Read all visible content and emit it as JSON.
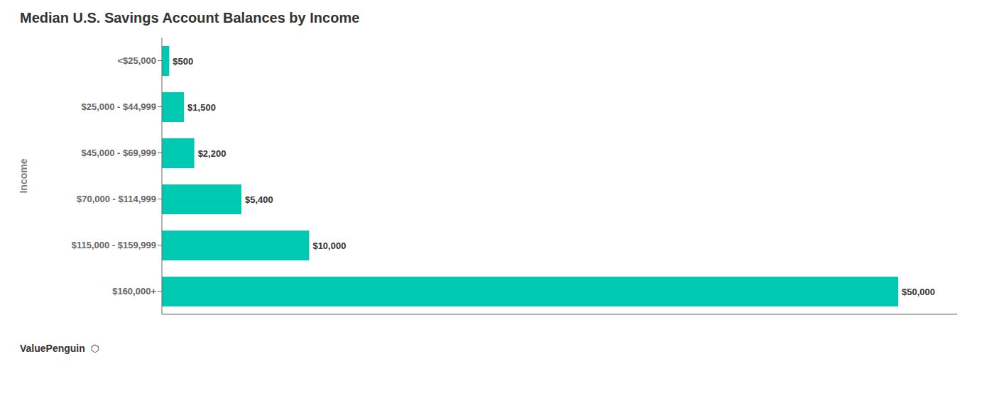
{
  "chart_data": {
    "type": "bar",
    "orientation": "horizontal",
    "title": "Median U.S. Savings Account Balances by Income",
    "y_label": "Income",
    "categories": [
      "<$25,000",
      "$25,000 - $44,999",
      "$45,000 - $69,999",
      "$70,000 - $114,999",
      "$115,000 - $159,999",
      "$160,000+"
    ],
    "values": [
      500,
      1500,
      2200,
      5400,
      10000,
      50000
    ],
    "value_labels": [
      "$500",
      "$1,500",
      "$2,200",
      "$5,400",
      "$10,000",
      "$50,000"
    ],
    "data_labels": true,
    "color": "#00C9B1",
    "xlim": [
      0,
      54000
    ],
    "xticks": [],
    "tick_labels": "y",
    "grid": false,
    "annotations": [
      "ValuePenguin",
      "⬡"
    ]
  }
}
